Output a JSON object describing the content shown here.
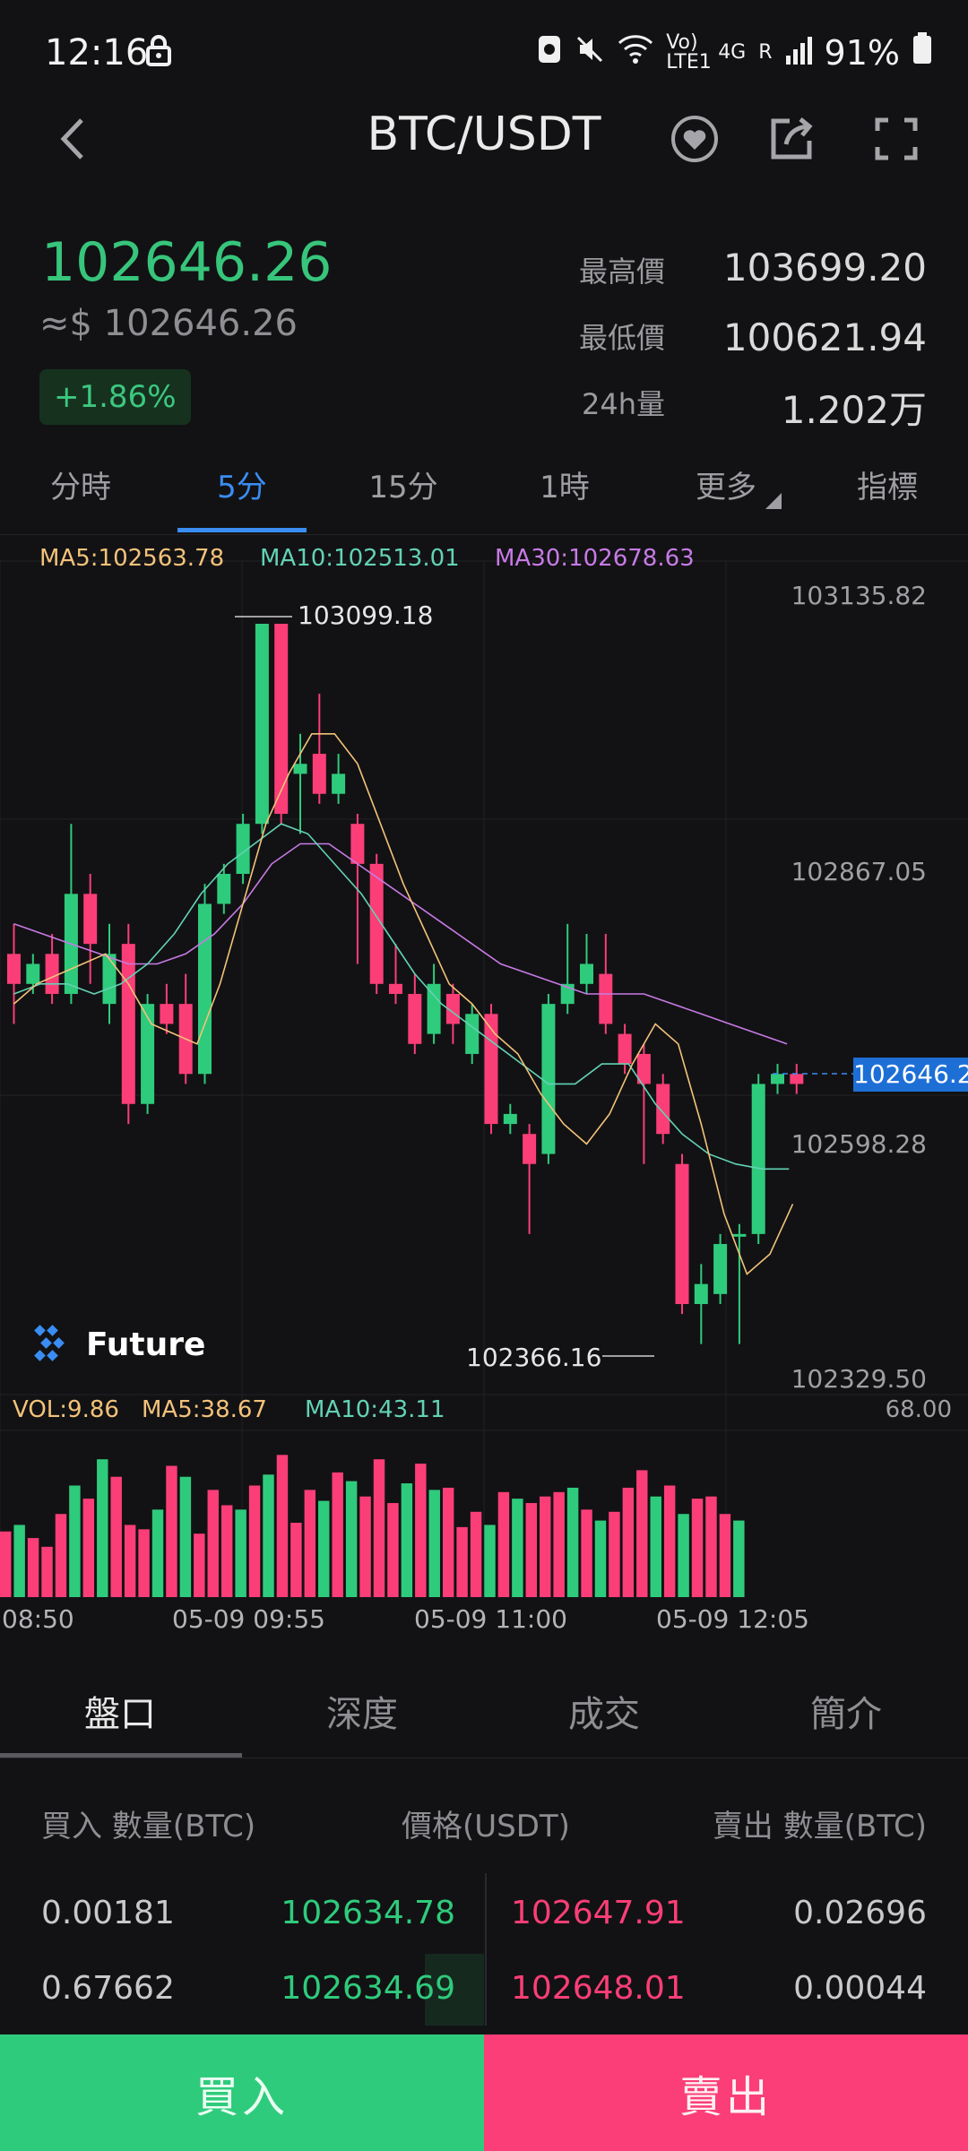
{
  "status_bar": {
    "time": "12:16",
    "battery": "91%",
    "network_small": "Vo) LTE1",
    "network_4g": "4G",
    "network_r": "R"
  },
  "header": {
    "title": "BTC/USDT"
  },
  "ticker": {
    "price": "102646.26",
    "usd_price": "≈$ 102646.26",
    "change": "+1.86%",
    "high_label": "最高價",
    "high_value": "103699.20",
    "low_label": "最低價",
    "low_value": "100621.94",
    "vol_label": "24h量",
    "vol_value": "1.202万"
  },
  "tabs": [
    "分時",
    "5分",
    "15分",
    "1時",
    "更多",
    "指標"
  ],
  "active_tab": "5分",
  "chart_overlay": {
    "ma5": "MA5:102563.78",
    "ma10": "MA10:102513.01",
    "ma30": "MA30:102678.63",
    "price_axis": [
      "103135.82",
      "102867.05",
      "102598.28",
      "102329.50"
    ],
    "current_price_tag": "102646.2",
    "high_marker": "103099.18",
    "low_marker": "102366.16",
    "vol_ma": {
      "vol": "VOL:9.86",
      "ma5": "MA5:38.67",
      "ma10": "MA10:43.11",
      "max": "68.00"
    },
    "time_axis": [
      "08:50",
      "05-09 09:55",
      "05-09 11:00",
      "05-09 12:05"
    ],
    "logo": "Future",
    "colors": {
      "up": "#2fcb7c",
      "down": "#fb3e77",
      "ma5": "#f3c27a",
      "ma10": "#63d2b5",
      "ma30": "#c87ae6"
    }
  },
  "chart_data": {
    "type": "candlestick",
    "ylim": [
      102329.5,
      103135.82
    ],
    "vol_max": 68.0,
    "candles": [
      {
        "o": 102770,
        "c": 102740,
        "h": 102800,
        "l": 102700
      },
      {
        "o": 102740,
        "c": 102760,
        "h": 102770,
        "l": 102730
      },
      {
        "o": 102770,
        "c": 102730,
        "h": 102790,
        "l": 102720
      },
      {
        "o": 102730,
        "c": 102830,
        "h": 102900,
        "l": 102720
      },
      {
        "o": 102830,
        "c": 102780,
        "h": 102850,
        "l": 102740
      },
      {
        "o": 102720,
        "c": 102770,
        "h": 102800,
        "l": 102700
      },
      {
        "o": 102780,
        "c": 102620,
        "h": 102800,
        "l": 102600
      },
      {
        "o": 102620,
        "c": 102720,
        "h": 102730,
        "l": 102610
      },
      {
        "o": 102720,
        "c": 102700,
        "h": 102740,
        "l": 102690
      },
      {
        "o": 102720,
        "c": 102650,
        "h": 102750,
        "l": 102640
      },
      {
        "o": 102650,
        "c": 102820,
        "h": 102840,
        "l": 102640
      },
      {
        "o": 102820,
        "c": 102850,
        "h": 102860,
        "l": 102810
      },
      {
        "o": 102850,
        "c": 102900,
        "h": 102910,
        "l": 102840
      },
      {
        "o": 102900,
        "c": 103100,
        "h": 103100,
        "l": 102890
      },
      {
        "o": 103100,
        "c": 102910,
        "h": 103100,
        "l": 102900
      },
      {
        "o": 102950,
        "c": 102960,
        "h": 102990,
        "l": 102890
      },
      {
        "o": 102970,
        "c": 102930,
        "h": 103030,
        "l": 102920
      },
      {
        "o": 102930,
        "c": 102950,
        "h": 102970,
        "l": 102920
      },
      {
        "o": 102900,
        "c": 102860,
        "h": 102910,
        "l": 102760
      },
      {
        "o": 102860,
        "c": 102740,
        "h": 102870,
        "l": 102730
      },
      {
        "o": 102740,
        "c": 102730,
        "h": 102780,
        "l": 102720
      },
      {
        "o": 102730,
        "c": 102680,
        "h": 102750,
        "l": 102670
      },
      {
        "o": 102690,
        "c": 102740,
        "h": 102760,
        "l": 102680
      },
      {
        "o": 102730,
        "c": 102700,
        "h": 102740,
        "l": 102680
      },
      {
        "o": 102670,
        "c": 102710,
        "h": 102720,
        "l": 102660
      },
      {
        "o": 102710,
        "c": 102600,
        "h": 102720,
        "l": 102590
      },
      {
        "o": 102600,
        "c": 102610,
        "h": 102620,
        "l": 102590
      },
      {
        "o": 102590,
        "c": 102560,
        "h": 102600,
        "l": 102490
      },
      {
        "o": 102570,
        "c": 102720,
        "h": 102730,
        "l": 102560
      },
      {
        "o": 102720,
        "c": 102740,
        "h": 102800,
        "l": 102710
      },
      {
        "o": 102740,
        "c": 102760,
        "h": 102790,
        "l": 102730
      },
      {
        "o": 102750,
        "c": 102700,
        "h": 102790,
        "l": 102690
      },
      {
        "o": 102690,
        "c": 102660,
        "h": 102700,
        "l": 102650
      },
      {
        "o": 102670,
        "c": 102640,
        "h": 102680,
        "l": 102560
      },
      {
        "o": 102640,
        "c": 102590,
        "h": 102650,
        "l": 102580
      },
      {
        "o": 102560,
        "c": 102420,
        "h": 102570,
        "l": 102410
      },
      {
        "o": 102420,
        "c": 102440,
        "h": 102460,
        "l": 102380
      },
      {
        "o": 102430,
        "c": 102480,
        "h": 102490,
        "l": 102420
      },
      {
        "o": 102490,
        "c": 102490,
        "h": 102500,
        "l": 102380
      },
      {
        "o": 102490,
        "c": 102640,
        "h": 102650,
        "l": 102480
      },
      {
        "o": 102640,
        "c": 102650,
        "h": 102660,
        "l": 102630
      },
      {
        "o": 102650,
        "c": 102640,
        "h": 102660,
        "l": 102630
      }
    ],
    "volume": [
      30,
      33,
      27,
      23,
      38,
      51,
      45,
      63,
      55,
      33,
      31,
      40,
      60,
      55,
      29,
      49,
      42,
      40,
      51,
      56,
      65,
      34,
      49,
      44,
      57,
      53,
      46,
      63,
      43,
      52,
      61,
      49,
      50,
      32,
      39,
      33,
      48,
      45,
      43,
      46,
      48,
      50,
      40,
      35,
      39,
      50,
      58,
      46,
      51,
      38,
      45,
      46,
      38,
      35,
      0
    ],
    "ma5": [
      102720,
      102740,
      102750,
      102760,
      102770,
      102740,
      102700,
      102690,
      102680,
      102740,
      102820,
      102900,
      102950,
      102990,
      102990,
      102960,
      102900,
      102840,
      102790,
      102740,
      102720,
      102690,
      102670,
      102630,
      102600,
      102580,
      102610,
      102660,
      102700,
      102680,
      102600,
      102510,
      102450,
      102470,
      102520
    ],
    "ma10": [
      102730,
      102740,
      102740,
      102730,
      102740,
      102760,
      102790,
      102830,
      102860,
      102880,
      102900,
      102890,
      102860,
      102830,
      102790,
      102750,
      102720,
      102700,
      102680,
      102660,
      102640,
      102640,
      102660,
      102660,
      102620,
      102590,
      102570,
      102560,
      102555,
      102555
    ],
    "ma30": [
      102800,
      102790,
      102780,
      102770,
      102760,
      102760,
      102770,
      102790,
      102820,
      102860,
      102880,
      102880,
      102860,
      102840,
      102820,
      102800,
      102780,
      102760,
      102750,
      102740,
      102730,
      102730,
      102730,
      102720,
      102710,
      102700,
      102690,
      102680
    ]
  },
  "order_book": {
    "tabs": [
      "盤口",
      "深度",
      "成交",
      "簡介"
    ],
    "headers": {
      "buy": "買入 數量(BTC)",
      "price": "價格(USDT)",
      "sell": "賣出 數量(BTC)"
    },
    "rows": [
      {
        "bid_qty": "0.00181",
        "bid_price": "102634.78",
        "ask_price": "102647.91",
        "ask_qty": "0.02696"
      },
      {
        "bid_qty": "0.67662",
        "bid_price": "102634.69",
        "ask_price": "102648.01",
        "ask_qty": "0.00044"
      }
    ]
  },
  "actions": {
    "buy": "買入",
    "sell": "賣出"
  }
}
